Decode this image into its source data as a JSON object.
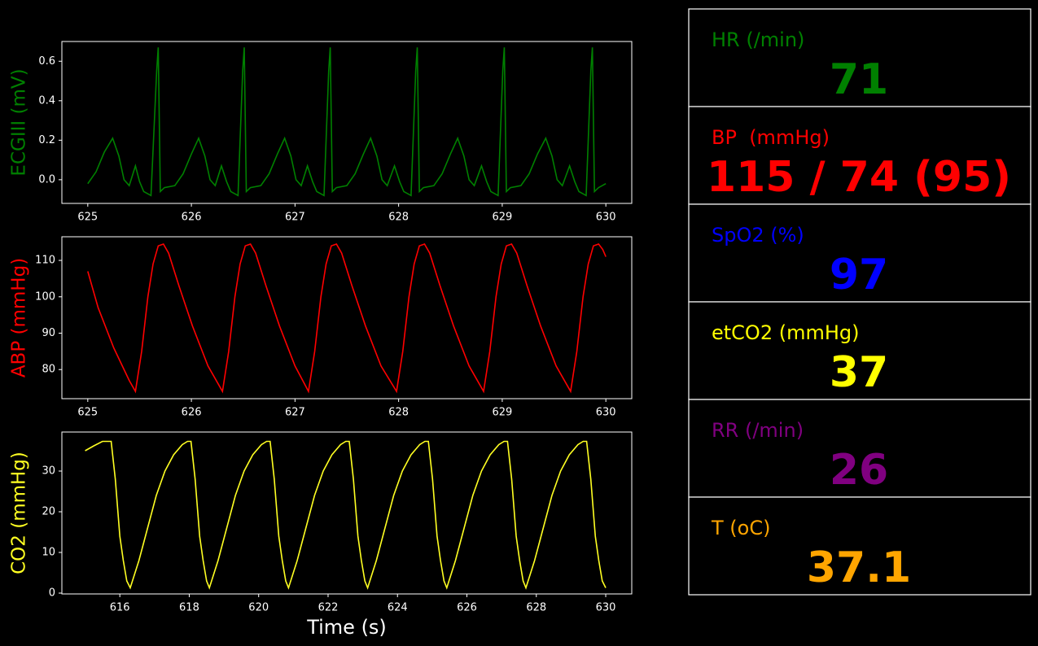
{
  "chart_data": [
    {
      "type": "line",
      "ylabel": "ECGIII (mV)",
      "color": "#008000",
      "xlim": [
        624.75,
        630.25
      ],
      "ylim": [
        -0.12,
        0.7
      ],
      "xticks": [
        625,
        626,
        627,
        628,
        629,
        630
      ],
      "yticks": [
        {
          "value": 0,
          "label": "0.0"
        },
        0.2,
        0.4,
        0.6
      ],
      "x": [
        625.0,
        625.08,
        625.16,
        625.24,
        625.3,
        625.35,
        625.4,
        625.46,
        625.5,
        625.54,
        625.61,
        625.665,
        625.68,
        625.7,
        625.74,
        625.84,
        625.92,
        626.0,
        626.07,
        626.13,
        626.18,
        626.23,
        626.29,
        626.34,
        626.38,
        626.45,
        626.495,
        626.51,
        626.53,
        626.57,
        626.67,
        626.75,
        626.83,
        626.9,
        626.96,
        627.01,
        627.06,
        627.12,
        627.17,
        627.21,
        627.28,
        627.325,
        627.34,
        627.36,
        627.4,
        627.5,
        627.58,
        627.66,
        627.73,
        627.79,
        627.84,
        627.89,
        627.96,
        628.01,
        628.05,
        628.12,
        628.165,
        628.18,
        628.2,
        628.24,
        628.34,
        628.42,
        628.5,
        628.57,
        628.63,
        628.68,
        628.73,
        628.8,
        628.85,
        628.89,
        628.96,
        629.005,
        629.02,
        629.04,
        629.08,
        629.18,
        629.26,
        629.34,
        629.42,
        629.48,
        629.53,
        629.58,
        629.65,
        629.7,
        629.74,
        629.81,
        629.855,
        629.87,
        629.89,
        629.93,
        630.0
      ],
      "values": [
        -0.02,
        0.04,
        0.14,
        0.21,
        0.12,
        0.0,
        -0.03,
        0.07,
        -0.01,
        -0.06,
        -0.08,
        0.55,
        0.67,
        -0.06,
        -0.04,
        -0.03,
        0.03,
        0.13,
        0.21,
        0.12,
        0.0,
        -0.03,
        0.07,
        -0.01,
        -0.06,
        -0.08,
        0.55,
        0.67,
        -0.06,
        -0.04,
        -0.03,
        0.03,
        0.13,
        0.21,
        0.12,
        0.0,
        -0.03,
        0.07,
        -0.01,
        -0.06,
        -0.08,
        0.55,
        0.67,
        -0.06,
        -0.04,
        -0.03,
        0.03,
        0.13,
        0.21,
        0.12,
        0.0,
        -0.03,
        0.07,
        -0.01,
        -0.06,
        -0.08,
        0.55,
        0.67,
        -0.06,
        -0.04,
        -0.03,
        0.03,
        0.13,
        0.21,
        0.12,
        0.0,
        -0.03,
        0.07,
        -0.01,
        -0.06,
        -0.08,
        0.55,
        0.67,
        -0.06,
        -0.04,
        -0.03,
        0.03,
        0.13,
        0.21,
        0.12,
        0.0,
        -0.03,
        0.07,
        -0.01,
        -0.06,
        -0.08,
        0.55,
        0.67,
        -0.06,
        -0.04,
        -0.02
      ]
    },
    {
      "type": "line",
      "ylabel": "ABP (mmHg)",
      "color": "#ff0000",
      "xlim": [
        624.75,
        630.25
      ],
      "ylim": [
        72,
        116.5
      ],
      "xticks": [
        625,
        626,
        627,
        628,
        629,
        630
      ],
      "yticks": [
        80,
        90,
        100,
        110
      ],
      "x": [
        625.0,
        625.1,
        625.25,
        625.4,
        625.46,
        625.52,
        625.58,
        625.63,
        625.68,
        625.73,
        625.78,
        625.88,
        626.01,
        626.16,
        626.3,
        626.36,
        626.42,
        626.47,
        626.52,
        626.57,
        626.62,
        626.72,
        626.85,
        627.0,
        627.13,
        627.19,
        627.25,
        627.3,
        627.35,
        627.4,
        627.45,
        627.55,
        627.68,
        627.83,
        627.98,
        628.04,
        628.1,
        628.15,
        628.2,
        628.25,
        628.3,
        628.4,
        628.53,
        628.68,
        628.82,
        628.88,
        628.94,
        628.99,
        629.04,
        629.09,
        629.14,
        629.24,
        629.37,
        629.52,
        629.66,
        629.72,
        629.78,
        629.83,
        629.88,
        629.93,
        629.97,
        630.0
      ],
      "values": [
        107,
        97,
        86,
        77,
        74,
        85,
        100,
        109,
        114,
        114.5,
        112,
        103,
        92,
        81,
        74,
        85,
        100,
        109,
        114,
        114.5,
        112,
        103,
        92,
        81,
        74,
        85,
        100,
        109,
        114,
        114.5,
        112,
        103,
        92,
        81,
        74,
        85,
        100,
        109,
        114,
        114.5,
        112,
        103,
        92,
        81,
        74,
        85,
        100,
        109,
        114,
        114.5,
        112,
        103,
        92,
        81,
        74,
        85,
        100,
        109,
        114,
        114.5,
        113,
        111
      ]
    },
    {
      "type": "line",
      "ylabel": "CO2 (mmHg)",
      "xlabel": "Time (s)",
      "color": "#ffff22",
      "xlim": [
        614.33,
        630.75
      ],
      "ylim": [
        -0.2,
        39.6
      ],
      "xticks": [
        616,
        618,
        620,
        622,
        624,
        626,
        628,
        630
      ],
      "yticks": [
        0,
        10,
        20,
        30
      ],
      "x": [
        615.0,
        615.25,
        615.5,
        615.75,
        615.87,
        616.0,
        616.1,
        616.2,
        616.3,
        616.55,
        616.8,
        617.05,
        617.3,
        617.55,
        617.8,
        617.95,
        618.05,
        618.17,
        618.3,
        618.4,
        618.5,
        618.58,
        618.83,
        619.08,
        619.33,
        619.58,
        619.83,
        620.08,
        620.23,
        620.33,
        620.45,
        620.58,
        620.68,
        620.78,
        620.86,
        621.11,
        621.36,
        621.61,
        621.86,
        622.11,
        622.36,
        622.51,
        622.61,
        622.73,
        622.86,
        622.96,
        623.06,
        623.14,
        623.39,
        623.64,
        623.89,
        624.14,
        624.39,
        624.64,
        624.79,
        624.89,
        625.01,
        625.14,
        625.24,
        625.34,
        625.42,
        625.67,
        625.92,
        626.17,
        626.42,
        626.67,
        626.92,
        627.07,
        627.17,
        627.29,
        627.42,
        627.52,
        627.62,
        627.7,
        627.95,
        628.2,
        628.45,
        628.7,
        628.95,
        629.2,
        629.35,
        629.45,
        629.57,
        629.7,
        629.8,
        629.9,
        630.0
      ],
      "values": [
        35,
        36.2,
        37.3,
        37.3,
        28,
        14,
        8,
        3,
        1.3,
        8,
        16,
        24,
        30,
        34,
        36.5,
        37.3,
        37.3,
        28,
        14,
        8,
        3,
        1.3,
        8,
        16,
        24,
        30,
        34,
        36.5,
        37.3,
        37.3,
        28,
        14,
        8,
        3,
        1.3,
        8,
        16,
        24,
        30,
        34,
        36.5,
        37.3,
        37.3,
        28,
        14,
        8,
        3,
        1.3,
        8,
        16,
        24,
        30,
        34,
        36.5,
        37.3,
        37.3,
        28,
        14,
        8,
        3,
        1.3,
        8,
        16,
        24,
        30,
        34,
        36.5,
        37.3,
        37.3,
        28,
        14,
        8,
        3,
        1.3,
        8,
        16,
        24,
        30,
        34,
        36.5,
        37.3,
        37.3,
        28,
        14,
        8,
        3,
        1.3
      ]
    }
  ],
  "panels": [
    {
      "label": "HR (/min)",
      "value": 71,
      "color": "#008000"
    },
    {
      "label": "BP  (mmHg)",
      "value": "115 / 74 (95)",
      "color": "#ff0000"
    },
    {
      "label": "SpO2 (%)",
      "value": 97,
      "color": "#0000ff"
    },
    {
      "label": "etCO2 (mmHg)",
      "value": 37,
      "color": "#ffff00"
    },
    {
      "label": "RR (/min)",
      "value": 26,
      "color": "#800080"
    },
    {
      "label": "T (oC)",
      "value": 37.1,
      "color": "#ffa500"
    }
  ]
}
